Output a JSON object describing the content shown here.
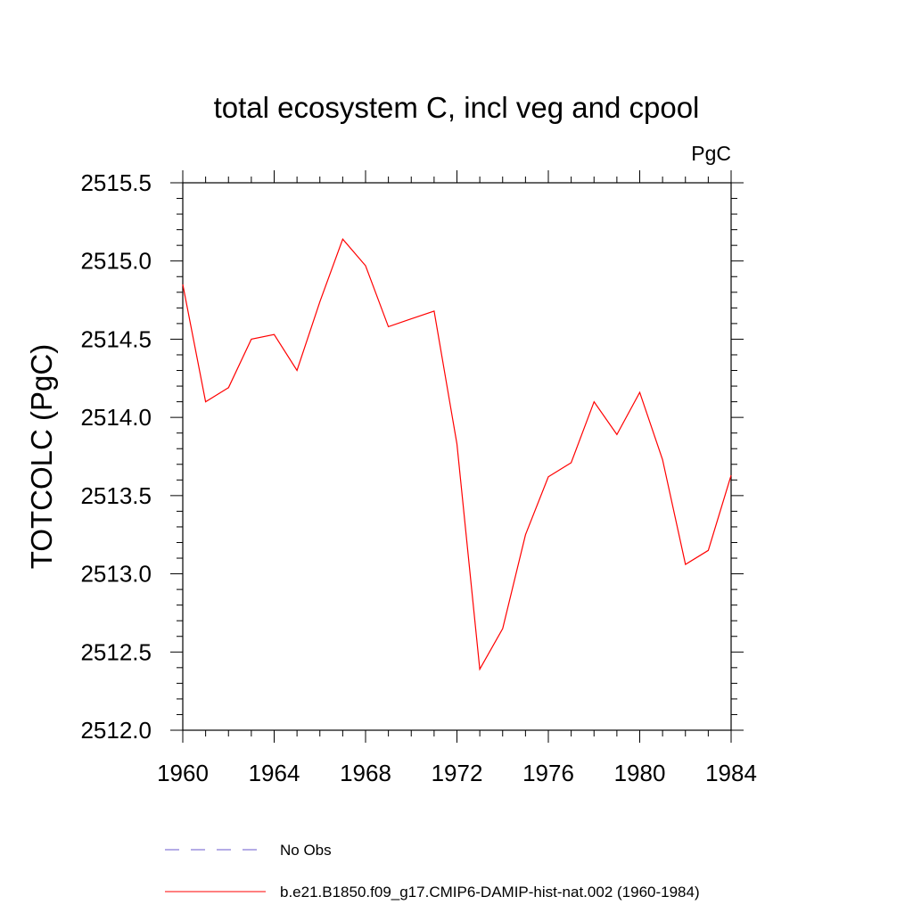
{
  "chart_data": {
    "type": "line",
    "title": "total ecosystem C, incl veg and cpool",
    "units_label": "PgC",
    "xlabel": "",
    "ylabel": "TOTCOLC  (PgC)",
    "xlim": [
      1960,
      1984
    ],
    "ylim": [
      2512.0,
      2515.5
    ],
    "x_ticks": [
      1960,
      1964,
      1968,
      1972,
      1976,
      1980,
      1984
    ],
    "x_tick_labels": [
      "1960",
      "1964",
      "1968",
      "1972",
      "1976",
      "1980",
      "1984"
    ],
    "y_ticks": [
      2512.0,
      2512.5,
      2513.0,
      2513.5,
      2514.0,
      2514.5,
      2515.0,
      2515.5
    ],
    "y_tick_labels": [
      "2512.0",
      "2512.5",
      "2513.0",
      "2513.5",
      "2514.0",
      "2514.5",
      "2515.0",
      "2515.5"
    ],
    "grid": false,
    "legend_position": "bottom",
    "series": [
      {
        "name": "b.e21.B1850.f09_g17.CMIP6-DAMIP-hist-nat.002 (1960-1984)",
        "color": "#ff0000",
        "dash": "solid",
        "x": [
          1960,
          1961,
          1962,
          1963,
          1964,
          1965,
          1966,
          1967,
          1968,
          1969,
          1970,
          1971,
          1972,
          1973,
          1974,
          1975,
          1976,
          1977,
          1978,
          1979,
          1980,
          1981,
          1982,
          1983,
          1984
        ],
        "y": [
          2514.85,
          2514.1,
          2514.19,
          2514.5,
          2514.53,
          2514.3,
          2514.74,
          2515.14,
          2514.97,
          2514.58,
          2514.63,
          2514.68,
          2513.83,
          2512.39,
          2512.65,
          2513.25,
          2513.62,
          2513.71,
          2514.1,
          2513.89,
          2514.16,
          2513.73,
          2513.06,
          2513.15,
          2513.63
        ]
      }
    ],
    "legend": [
      {
        "label": "No Obs",
        "color": "#6a5acd",
        "dash": "dashed"
      },
      {
        "label": "b.e21.B1850.f09_g17.CMIP6-DAMIP-hist-nat.002 (1960-1984)",
        "color": "#ff0000",
        "dash": "solid"
      }
    ]
  }
}
